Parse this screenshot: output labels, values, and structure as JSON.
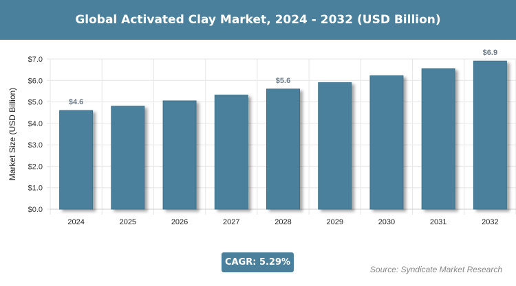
{
  "chart_data": {
    "type": "bar",
    "title": "Global Activated Clay Market, 2024 - 2032 (USD Billion)",
    "xlabel": "",
    "ylabel": "Market Size (USD Billion)",
    "categories": [
      "2024",
      "2025",
      "2026",
      "2027",
      "2028",
      "2029",
      "2030",
      "2031",
      "2032"
    ],
    "values": [
      4.6,
      4.8,
      5.05,
      5.32,
      5.6,
      5.9,
      6.22,
      6.55,
      6.9
    ],
    "data_labels": {
      "0": "$4.6",
      "4": "$5.6",
      "8": "$6.9"
    },
    "ylim": [
      0,
      7
    ],
    "yticks": [
      "$0.0",
      "$1.0",
      "$2.0",
      "$3.0",
      "$4.0",
      "$5.0",
      "$6.0",
      "$7.0"
    ],
    "grid": true,
    "bar_color": "#4b809c"
  },
  "cagr": "CAGR: 5.29%",
  "source": "Source: Syndicate Market Research"
}
